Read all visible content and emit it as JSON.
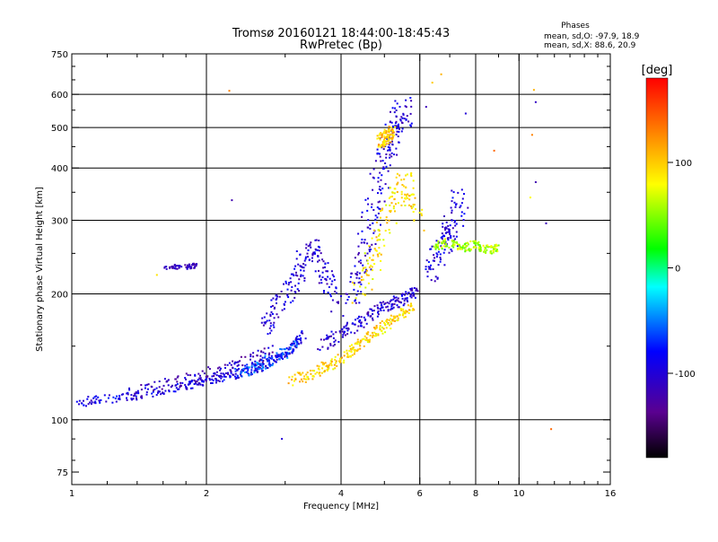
{
  "chart_data": {
    "type": "scatter",
    "title": "Tromsø 20160121 18:44:00-18:45:43",
    "subtitle": "RwPretec (Bp)",
    "xlabel": "Frequency [MHz]",
    "ylabel": "Stationary phase Virtual Height [km]",
    "x_scale": "log",
    "y_scale": "log",
    "xlim": [
      1,
      16
    ],
    "ylim": [
      70,
      750
    ],
    "x_ticks": [
      1,
      2,
      4,
      6,
      8,
      10,
      16
    ],
    "x_tick_labels": [
      "1",
      "2",
      "4",
      "6",
      "8",
      "10",
      "16"
    ],
    "x_minor_ticks": [
      1.2,
      1.4,
      1.6,
      1.8,
      3,
      5,
      7,
      9,
      11,
      12,
      13,
      14,
      15
    ],
    "y_ticks": [
      75,
      100,
      200,
      300,
      400,
      500,
      600,
      750
    ],
    "y_tick_labels": [
      "75",
      "100",
      "200",
      "300",
      "400",
      "500",
      "600",
      "750"
    ],
    "y_minor_ticks": [
      80,
      90,
      150,
      250,
      350,
      450,
      550,
      650,
      700
    ],
    "grid": true,
    "grid_x": [
      2,
      4,
      6,
      8,
      10
    ],
    "grid_y": [
      100,
      200,
      300,
      400,
      500,
      600
    ],
    "phase_info": {
      "heading": "Phases",
      "line1": "mean, sd,O: -97.9, 18.9",
      "line2": "mean, sd,X:  88.6, 20.9"
    },
    "colorbar": {
      "label": "[deg]",
      "range": [
        -180,
        180
      ],
      "ticks": [
        100,
        0,
        -100
      ],
      "tick_labels": [
        "100",
        "0",
        "-100"
      ]
    },
    "traces": [
      {
        "x": [
          1.02,
          1.2,
          1.5,
          1.8,
          2.0,
          2.3,
          2.6,
          2.9,
          3.1,
          3.3
        ],
        "y": [
          110,
          112,
          116,
          120,
          124,
          128,
          132,
          140,
          148,
          160
        ],
        "phase": -95,
        "spread": 4
      },
      {
        "x": [
          1.3,
          1.6,
          1.9,
          2.2,
          2.5,
          2.8
        ],
        "y": [
          114,
          120,
          126,
          132,
          138,
          146
        ],
        "phase": -110,
        "spread": 6
      },
      {
        "x": [
          2.3,
          2.6,
          2.9,
          3.2
        ],
        "y": [
          128,
          134,
          142,
          150
        ],
        "phase": -60,
        "spread": 5
      },
      {
        "x": [
          3.1,
          3.4,
          3.7,
          4.0,
          4.3,
          4.6,
          5.0,
          5.4,
          5.8
        ],
        "y": [
          124,
          128,
          134,
          140,
          150,
          158,
          168,
          178,
          188
        ],
        "phase": 95,
        "spread": 5
      },
      {
        "x": [
          3.6,
          4.0,
          4.4,
          4.8,
          5.2,
          5.6,
          5.9
        ],
        "y": [
          150,
          160,
          172,
          182,
          190,
          196,
          205
        ],
        "phase": -105,
        "spread": 6
      },
      {
        "x": [
          2.7,
          2.9,
          3.1,
          3.3,
          3.5,
          3.7,
          3.9
        ],
        "y": [
          165,
          185,
          210,
          240,
          260,
          220,
          190
        ],
        "phase": -100,
        "spread": 10
      },
      {
        "x": [
          4.2,
          4.4,
          4.6,
          4.8,
          5.0,
          5.2,
          5.4,
          5.6
        ],
        "y": [
          190,
          230,
          280,
          350,
          420,
          470,
          520,
          560
        ],
        "phase": -100,
        "spread": 14
      },
      {
        "x": [
          4.4,
          4.7,
          5.0,
          5.3,
          5.6,
          5.9
        ],
        "y": [
          200,
          240,
          290,
          340,
          380,
          300
        ],
        "phase": 90,
        "spread": 12
      },
      {
        "x": [
          4.9,
          5.0,
          5.1,
          5.2
        ],
        "y": [
          460,
          470,
          480,
          490
        ],
        "phase": 100,
        "spread": 6
      },
      {
        "x": [
          6.3,
          6.6,
          6.9,
          7.2,
          7.4
        ],
        "y": [
          220,
          250,
          270,
          300,
          340
        ],
        "phase": -95,
        "spread": 12
      },
      {
        "x": [
          6.5,
          7.0,
          7.5,
          8.0,
          8.5,
          9.0
        ],
        "y": [
          260,
          265,
          258,
          262,
          255,
          258
        ],
        "phase": 60,
        "spread": 4
      },
      {
        "x": [
          1.6,
          1.8,
          1.9
        ],
        "y": [
          232,
          232,
          234
        ],
        "phase": -115,
        "spread": 2
      }
    ],
    "outliers": [
      {
        "x": 2.25,
        "y": 612,
        "phase": 130
      },
      {
        "x": 2.28,
        "y": 335,
        "phase": -120
      },
      {
        "x": 2.95,
        "y": 90,
        "phase": -100
      },
      {
        "x": 6.7,
        "y": 670,
        "phase": 110
      },
      {
        "x": 6.4,
        "y": 640,
        "phase": 100
      },
      {
        "x": 10.8,
        "y": 615,
        "phase": 110
      },
      {
        "x": 10.9,
        "y": 575,
        "phase": -110
      },
      {
        "x": 10.7,
        "y": 480,
        "phase": 130
      },
      {
        "x": 10.9,
        "y": 370,
        "phase": -120
      },
      {
        "x": 11.5,
        "y": 295,
        "phase": -115
      },
      {
        "x": 11.8,
        "y": 95,
        "phase": 140
      },
      {
        "x": 8.8,
        "y": 440,
        "phase": 140
      },
      {
        "x": 10.6,
        "y": 340,
        "phase": 80
      },
      {
        "x": 1.55,
        "y": 222,
        "phase": 90
      },
      {
        "x": 7.6,
        "y": 540,
        "phase": -100
      },
      {
        "x": 6.2,
        "y": 560,
        "phase": -115
      }
    ]
  }
}
